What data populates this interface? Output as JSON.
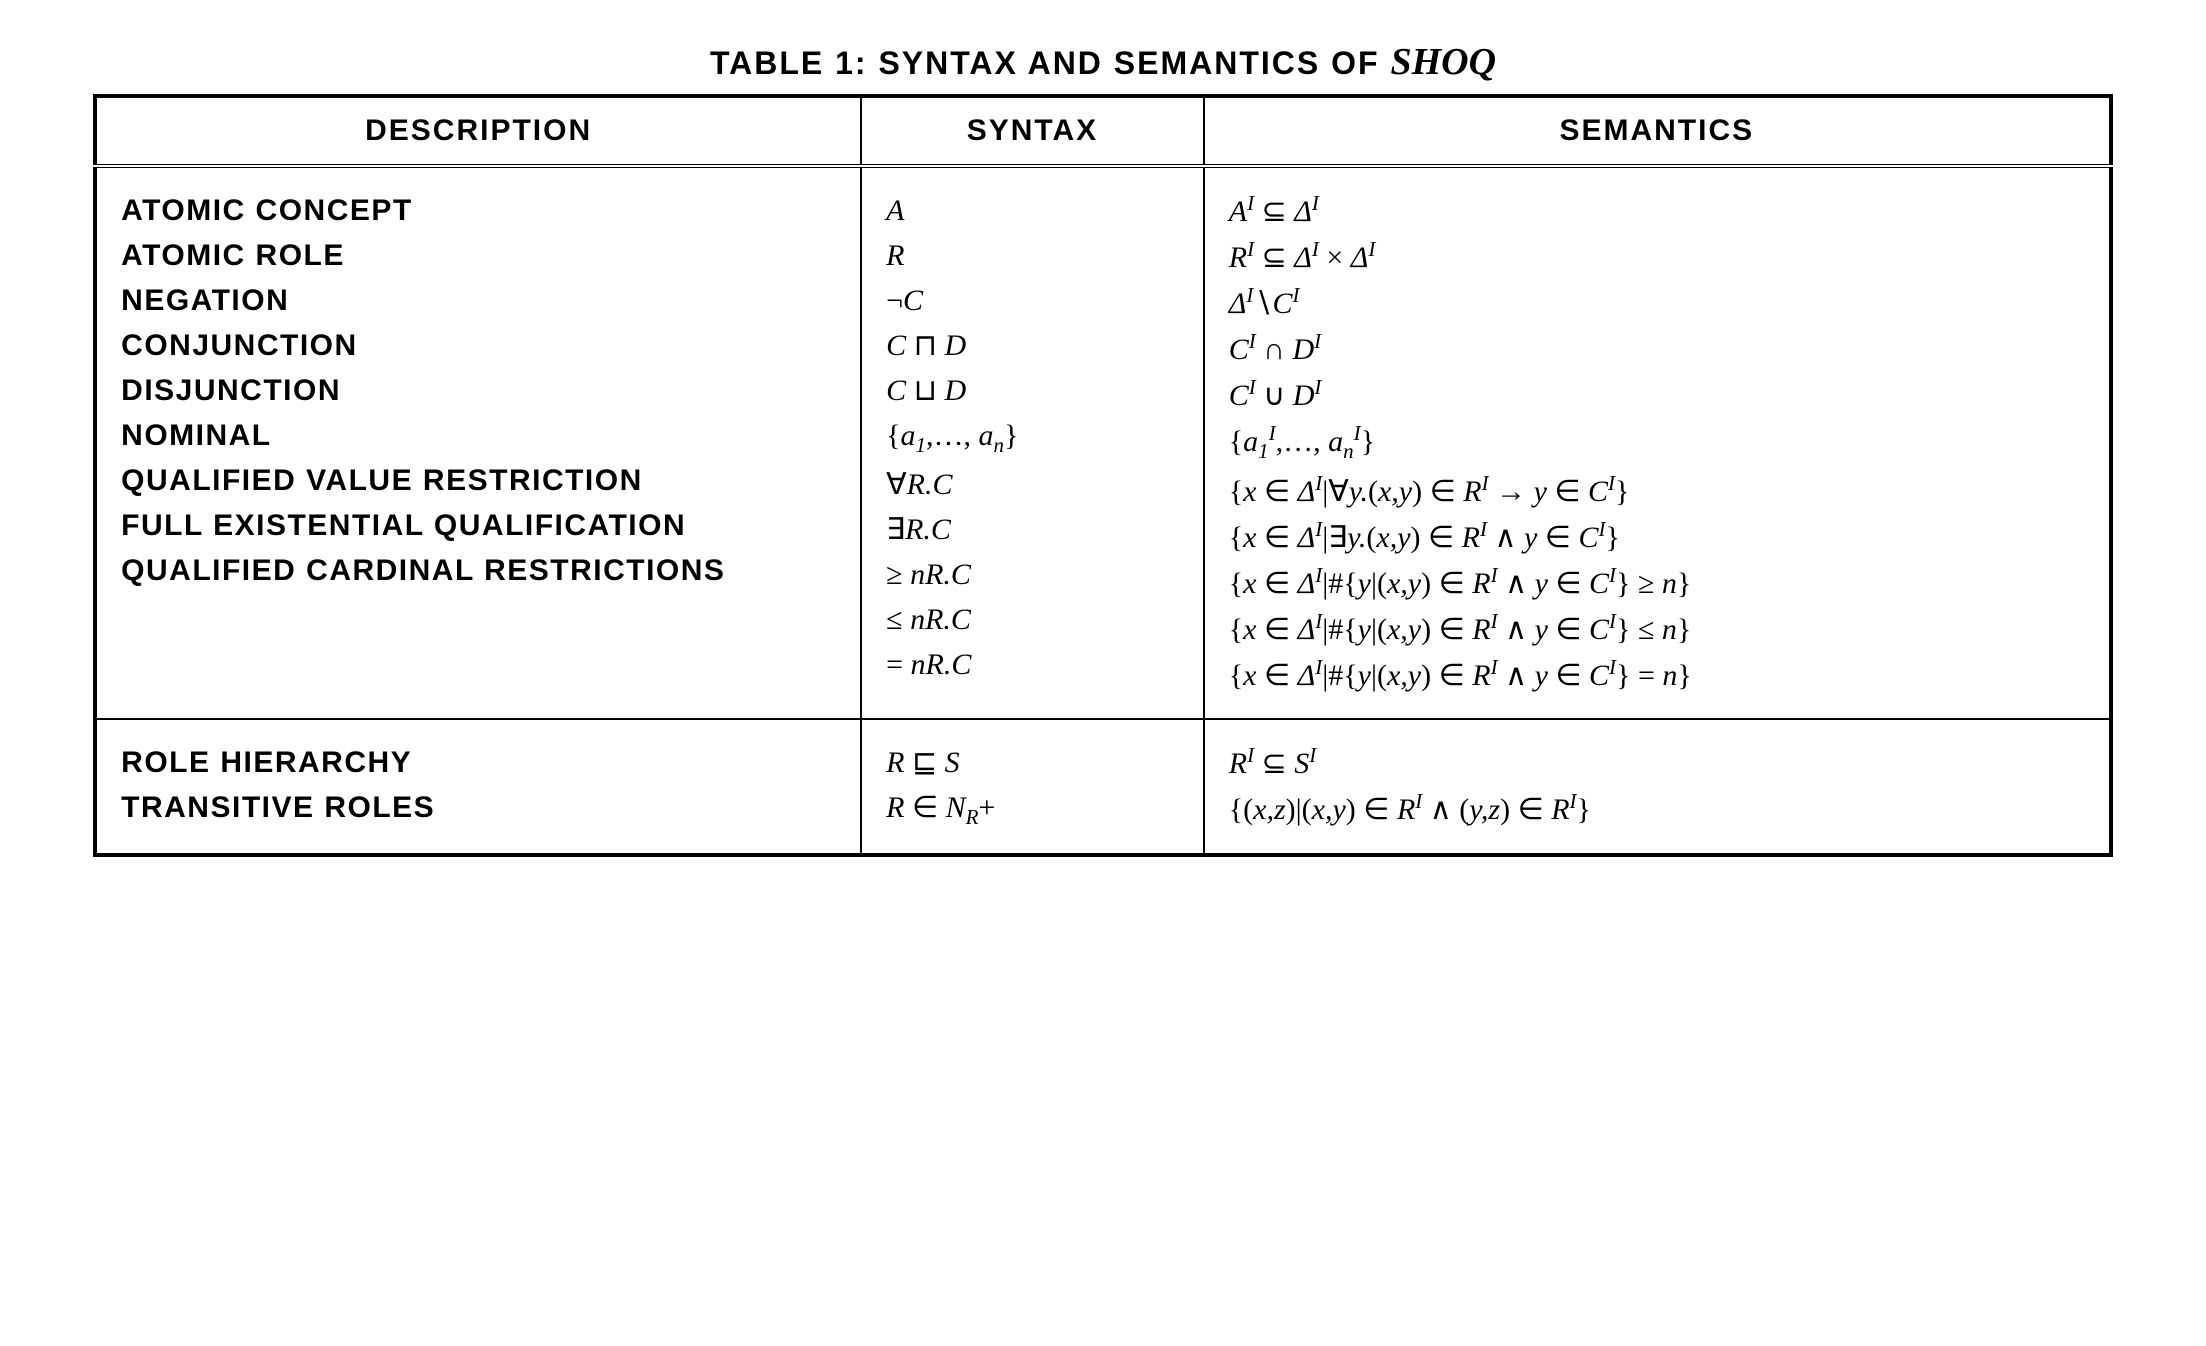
{
  "caption_prefix": "TABLE 1: SYNTAX AND SEMANTICS OF ",
  "caption_italic": "SHOQ",
  "headers": {
    "description": "DESCRIPTION",
    "syntax": "SYNTAX",
    "semantics": "SEMANTICS"
  },
  "section1": [
    {
      "desc": "ATOMIC CONCEPT",
      "syntax": "<span>A</span>",
      "semantics": "<span>A<sup class='sup-i'>I</sup> <span class='rm'>⊆</span> Δ<sup class='sup-i'>I</sup></span>"
    },
    {
      "desc": "ATOMIC ROLE",
      "syntax": "<span>R</span>",
      "semantics": "<span>R<sup class='sup-i'>I</sup> <span class='rm'>⊆</span> Δ<sup class='sup-i'>I</sup> <span class='rm'>×</span> Δ<sup class='sup-i'>I</sup></span>"
    },
    {
      "desc": "NEGATION",
      "syntax": "<span><span class='rm'>¬</span>C</span>",
      "semantics": "<span>Δ<sup class='sup-i'>I</sup><span class='rm'>∖</span>C<sup class='sup-i'>I</sup></span>"
    },
    {
      "desc": "CONJUNCTION",
      "syntax": "<span>C <span class='rm'>⊓</span> D</span>",
      "semantics": "<span>C<sup class='sup-i'>I</sup> <span class='rm'>∩</span> D<sup class='sup-i'>I</sup></span>"
    },
    {
      "desc": "DISJUNCTION",
      "syntax": "<span>C <span class='rm'>⊔</span> D</span>",
      "semantics": "<span>C<sup class='sup-i'>I</sup> <span class='rm'>∪</span> D<sup class='sup-i'>I</sup></span>"
    },
    {
      "desc": "NOMINAL",
      "syntax": "<span><span class='rm'>{</span>a<sub>1</sub><span class='rm'>,…, </span>a<sub>n</sub><span class='rm'>}</span></span>",
      "semantics": "<span><span class='rm'>{</span>a<sub>1</sub><sup class='sup-i'>I</sup><span class='rm'>,…, </span>a<sub>n</sub><sup class='sup-i'>I</sup><span class='rm'>}</span></span>"
    },
    {
      "desc": "QUALIFIED VALUE RESTRICTION",
      "syntax": "<span><span class='rm'>∀</span>R.C</span>",
      "semantics": "<span><span class='rm'>{</span>x <span class='rm'>∈</span> Δ<sup class='sup-i'>I</sup><span class='rm'>|∀</span>y.<span class='rm'>(</span>x,y<span class='rm'>)</span> <span class='rm'>∈</span> R<sup class='sup-i'>I</sup> <span class='rm'>→</span> y <span class='rm'>∈</span> C<sup class='sup-i'>I</sup><span class='rm'>}</span></span>"
    },
    {
      "desc": "FULL EXISTENTIAL QUALIFICATION",
      "syntax": "<span><span class='rm'>∃</span>R.C</span>",
      "semantics": "<span><span class='rm'>{</span>x <span class='rm'>∈</span> Δ<sup class='sup-i'>I</sup><span class='rm'>|∃</span>y.<span class='rm'>(</span>x,y<span class='rm'>)</span> <span class='rm'>∈</span> R<sup class='sup-i'>I</sup> <span class='rm'>∧</span> y <span class='rm'>∈</span> C<sup class='sup-i'>I</sup><span class='rm'>}</span></span>"
    },
    {
      "desc": "QUALIFIED CARDINAL RESTRICTIONS",
      "syntax": "<span><span class='rm'>≥</span> nR.C</span>",
      "semantics": "<span><span class='rm'>{</span>x <span class='rm'>∈</span> Δ<sup class='sup-i'>I</sup><span class='rm'>|#{</span>y<span class='rm'>|(</span>x,y<span class='rm'>)</span> <span class='rm'>∈</span> R<sup class='sup-i'>I</sup> <span class='rm'>∧</span> y <span class='rm'>∈</span> C<sup class='sup-i'>I</sup><span class='rm'>}</span> <span class='rm'>≥</span> n<span class='rm'>}</span></span>"
    },
    {
      "desc": "",
      "syntax": "<span><span class='rm'>≤</span> nR.C</span>",
      "semantics": "<span><span class='rm'>{</span>x <span class='rm'>∈</span> Δ<sup class='sup-i'>I</sup><span class='rm'>|#{</span>y<span class='rm'>|(</span>x,y<span class='rm'>)</span> <span class='rm'>∈</span> R<sup class='sup-i'>I</sup> <span class='rm'>∧</span> y <span class='rm'>∈</span> C<sup class='sup-i'>I</sup><span class='rm'>}</span> <span class='rm'>≤</span> n<span class='rm'>}</span></span>"
    },
    {
      "desc": "",
      "syntax": "<span><span class='rm'>=</span> nR.C</span>",
      "semantics": "<span><span class='rm'>{</span>x <span class='rm'>∈</span> Δ<sup class='sup-i'>I</sup><span class='rm'>|#{</span>y<span class='rm'>|(</span>x,y<span class='rm'>)</span> <span class='rm'>∈</span> R<sup class='sup-i'>I</sup> <span class='rm'>∧</span> y <span class='rm'>∈</span> C<sup class='sup-i'>I</sup><span class='rm'>}</span> <span class='rm'>=</span> n<span class='rm'>}</span></span>"
    }
  ],
  "section2": [
    {
      "desc": "ROLE HIERARCHY",
      "syntax": "<span>R <span class='rm'>⊑</span> S</span>",
      "semantics": "<span>R<sup class='sup-i'>I</sup> <span class='rm'>⊆</span> S<sup class='sup-i'>I</sup></span>"
    },
    {
      "desc": "TRANSITIVE ROLES",
      "syntax": "<span>R <span class='rm'>∈</span> N<sub>R</sub><span class='rm'>+</span></span>",
      "semantics": "<span><span class='rm'>{(</span>x,z<span class='rm'>)|(</span>x,y<span class='rm'>)</span> <span class='rm'>∈</span> R<sup class='sup-i'>I</sup> <span class='rm'>∧ (</span>y,z<span class='rm'>)</span> <span class='rm'>∈</span> R<sup class='sup-i'>I</sup><span class='rm'>}</span></span>"
    }
  ],
  "style": {
    "background_color": "#ffffff",
    "text_color": "#000000",
    "border_color": "#000000",
    "caption_fontsize": 32,
    "header_fontsize": 30,
    "cell_fontsize": 30,
    "columns": [
      "DESCRIPTION",
      "SYNTAX",
      "SEMANTICS"
    ],
    "col_widths_pct": [
      38,
      17,
      45
    ]
  }
}
